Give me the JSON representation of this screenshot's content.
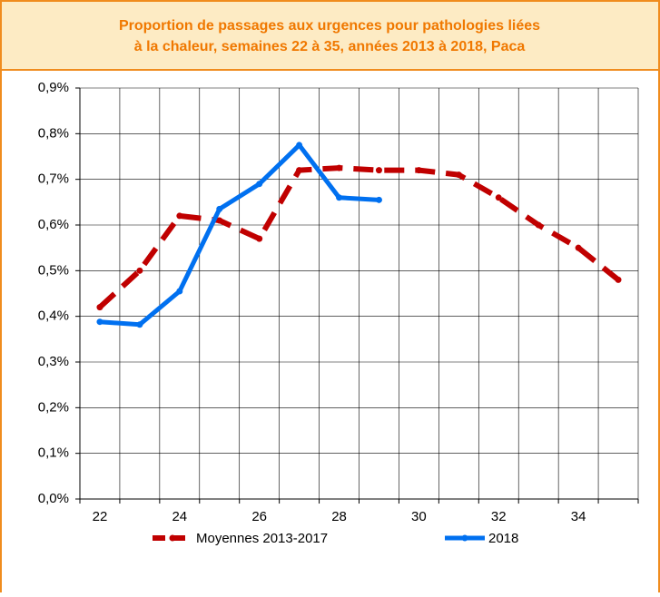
{
  "chart_data": {
    "type": "line",
    "title": [
      "Proportion de passages aux urgences pour pathologies liées",
      "à la chaleur, semaines 22 à 35, années 2013 à 2018, Paca"
    ],
    "categories": [
      22,
      null,
      24,
      null,
      26,
      null,
      28,
      null,
      30,
      null,
      32,
      null,
      34,
      null
    ],
    "series": [
      {
        "name": "Moyennes 2013-2017",
        "color": "#c00000",
        "dashed": true,
        "values": [
          0.42,
          0.5,
          0.62,
          0.61,
          0.57,
          0.72,
          0.725,
          0.72,
          0.72,
          0.71,
          0.66,
          0.6,
          0.55,
          0.48
        ]
      },
      {
        "name": "2018",
        "color": "#0070f0",
        "dashed": false,
        "values": [
          0.388,
          0.382,
          0.455,
          0.635,
          0.69,
          0.775,
          0.66,
          0.655,
          null,
          null,
          null,
          null,
          null,
          null
        ]
      }
    ],
    "ylim": [
      0,
      0.9
    ],
    "yticks": [
      {
        "value": 0,
        "label": "0,0%"
      },
      {
        "value": 0.1,
        "label": "0,1%"
      },
      {
        "value": 0.2,
        "label": "0,2%"
      },
      {
        "value": 0.3,
        "label": "0,3%"
      },
      {
        "value": 0.4,
        "label": "0,4%"
      },
      {
        "value": 0.5,
        "label": "0,5%"
      },
      {
        "value": 0.6,
        "label": "0,6%"
      },
      {
        "value": 0.7,
        "label": "0,7%"
      },
      {
        "value": 0.8,
        "label": "0,8%"
      },
      {
        "value": 0.9,
        "label": "0,9%"
      }
    ],
    "grid": true
  }
}
